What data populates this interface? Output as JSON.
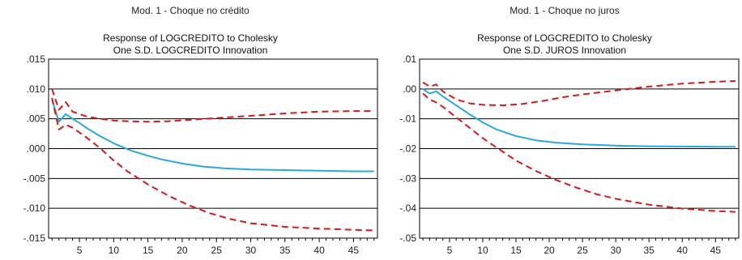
{
  "panels": [
    {
      "heading": "Mod. 1 - Choque no crédito",
      "title_line1": "Response of LOGCREDITO to Cholesky",
      "title_line2": "One S.D. LOGCREDITO Innovation"
    },
    {
      "heading": "Mod. 1 - Choque no juros",
      "title_line1": "Response of LOGCREDITO to Cholesky",
      "title_line2": "One S.D. JUROS Innovation"
    }
  ],
  "colors": {
    "response": "#2aa7df",
    "bands": "#d7191c",
    "grid": "#000000"
  },
  "chart_data": [
    {
      "type": "line",
      "title": "Response of LOGCREDITO to Cholesky One S.D. LOGCREDITO Innovation",
      "x": [
        1,
        48
      ],
      "xticks": [
        5,
        10,
        15,
        20,
        25,
        30,
        35,
        40,
        45
      ],
      "xtick_labels": [
        "5",
        "10",
        "15",
        "20",
        "25",
        "30",
        "35",
        "40",
        "45"
      ],
      "yticks": [
        0.015,
        0.01,
        0.005,
        0.0,
        -0.005,
        -0.01,
        -0.015
      ],
      "ytick_labels": [
        ".015",
        ".010",
        ".005",
        ".000",
        "-.005",
        "-.010",
        "-.015"
      ],
      "ylim": [
        -0.015,
        0.015
      ],
      "grid": true,
      "series": [
        {
          "role": "response",
          "style": "solid",
          "points": [
            [
              1,
              0.0082
            ],
            [
              2,
              0.0045
            ],
            [
              3,
              0.0058
            ],
            [
              4,
              0.005
            ],
            [
              5,
              0.0043
            ],
            [
              6,
              0.0035
            ],
            [
              7,
              0.0028
            ],
            [
              8,
              0.0021
            ],
            [
              9,
              0.0015
            ],
            [
              10,
              0.0009
            ],
            [
              11,
              0.0004
            ],
            [
              12,
              -0.0001
            ],
            [
              13,
              -0.0005
            ],
            [
              15,
              -0.0012
            ],
            [
              17,
              -0.0018
            ],
            [
              20,
              -0.0025
            ],
            [
              23,
              -0.003
            ],
            [
              26,
              -0.0033
            ],
            [
              30,
              -0.0035
            ],
            [
              35,
              -0.0036
            ],
            [
              40,
              -0.0037
            ],
            [
              45,
              -0.0038
            ],
            [
              48,
              -0.0038
            ]
          ]
        },
        {
          "role": "upper band",
          "style": "dashed",
          "points": [
            [
              1,
              0.01
            ],
            [
              2,
              0.0065
            ],
            [
              3,
              0.0078
            ],
            [
              4,
              0.0062
            ],
            [
              6,
              0.0054
            ],
            [
              8,
              0.005
            ],
            [
              10,
              0.0047
            ],
            [
              12,
              0.0046
            ],
            [
              15,
              0.0045
            ],
            [
              18,
              0.0046
            ],
            [
              22,
              0.0049
            ],
            [
              26,
              0.0052
            ],
            [
              30,
              0.0055
            ],
            [
              35,
              0.0059
            ],
            [
              40,
              0.0062
            ],
            [
              45,
              0.0063
            ],
            [
              48,
              0.0063
            ]
          ]
        },
        {
          "role": "lower band",
          "style": "dashed",
          "points": [
            [
              1,
              0.0085
            ],
            [
              2,
              0.0032
            ],
            [
              3,
              0.004
            ],
            [
              4,
              0.0035
            ],
            [
              6,
              0.0019
            ],
            [
              8,
              0.0001
            ],
            [
              10,
              -0.002
            ],
            [
              12,
              -0.0038
            ],
            [
              15,
              -0.006
            ],
            [
              18,
              -0.0079
            ],
            [
              21,
              -0.0095
            ],
            [
              24,
              -0.0108
            ],
            [
              27,
              -0.0118
            ],
            [
              30,
              -0.0125
            ],
            [
              35,
              -0.0131
            ],
            [
              40,
              -0.0134
            ],
            [
              45,
              -0.0136
            ],
            [
              48,
              -0.0137
            ]
          ]
        }
      ]
    },
    {
      "type": "line",
      "title": "Response of LOGCREDITO to Cholesky One S.D. JUROS Innovation",
      "x": [
        1,
        48
      ],
      "xticks": [
        5,
        10,
        15,
        20,
        25,
        30,
        35,
        40,
        45
      ],
      "xtick_labels": [
        "5",
        "10",
        "15",
        "20",
        "25",
        "30",
        "35",
        "40",
        "45"
      ],
      "yticks": [
        0.01,
        0.0,
        -0.01,
        -0.02,
        -0.03,
        -0.04,
        -0.05
      ],
      "ytick_labels": [
        ".01",
        ".00",
        "-.01",
        "-.02",
        "-.03",
        "-.04",
        "-.05"
      ],
      "ylim": [
        -0.05,
        0.01
      ],
      "grid": true,
      "series": [
        {
          "role": "response",
          "style": "solid",
          "points": [
            [
              1,
              0.0
            ],
            [
              2,
              -0.0015
            ],
            [
              3,
              -0.0008
            ],
            [
              4,
              -0.0025
            ],
            [
              6,
              -0.0055
            ],
            [
              8,
              -0.0085
            ],
            [
              10,
              -0.0112
            ],
            [
              12,
              -0.0135
            ],
            [
              15,
              -0.0158
            ],
            [
              18,
              -0.0172
            ],
            [
              21,
              -0.018
            ],
            [
              25,
              -0.0186
            ],
            [
              30,
              -0.019
            ],
            [
              35,
              -0.0192
            ],
            [
              40,
              -0.0193
            ],
            [
              45,
              -0.0194
            ],
            [
              48,
              -0.0194
            ]
          ]
        },
        {
          "role": "upper band",
          "style": "dashed",
          "points": [
            [
              1,
              0.0022
            ],
            [
              2,
              0.0008
            ],
            [
              3,
              0.0015
            ],
            [
              4,
              -0.0008
            ],
            [
              6,
              -0.0035
            ],
            [
              8,
              -0.0048
            ],
            [
              10,
              -0.0053
            ],
            [
              13,
              -0.0055
            ],
            [
              16,
              -0.005
            ],
            [
              19,
              -0.004
            ],
            [
              22,
              -0.0028
            ],
            [
              25,
              -0.0018
            ],
            [
              30,
              -0.0005
            ],
            [
              35,
              0.0008
            ],
            [
              40,
              0.0018
            ],
            [
              45,
              0.0024
            ],
            [
              48,
              0.0027
            ]
          ]
        },
        {
          "role": "lower band",
          "style": "dashed",
          "points": [
            [
              1,
              -0.0015
            ],
            [
              2,
              -0.0035
            ],
            [
              3,
              -0.0045
            ],
            [
              4,
              -0.006
            ],
            [
              6,
              -0.0095
            ],
            [
              8,
              -0.013
            ],
            [
              10,
              -0.0165
            ],
            [
              12,
              -0.0195
            ],
            [
              15,
              -0.024
            ],
            [
              18,
              -0.0275
            ],
            [
              21,
              -0.0305
            ],
            [
              24,
              -0.033
            ],
            [
              27,
              -0.0352
            ],
            [
              30,
              -0.0368
            ],
            [
              35,
              -0.0388
            ],
            [
              40,
              -0.0401
            ],
            [
              45,
              -0.0409
            ],
            [
              48,
              -0.0412
            ]
          ]
        }
      ]
    }
  ]
}
